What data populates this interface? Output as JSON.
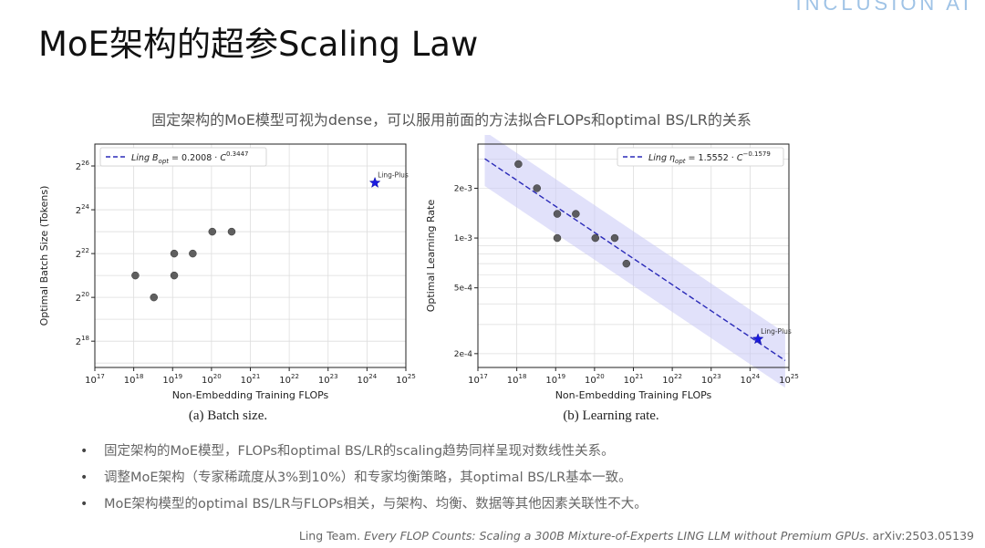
{
  "brand": "INCLUSION AI",
  "slide": {
    "title": "MoE架构的超参Scaling Law",
    "subtitle": "固定架构的MoE模型可视为dense，可以服用前面的方法拟合FLOPs和optimal BS/LR的关系"
  },
  "captions": [
    "(a) Batch size.",
    "(b) Learning rate."
  ],
  "chart_data": [
    {
      "type": "scatter",
      "xscale": "log",
      "yscale": "log2",
      "xlabel": "Non-Embedding Training FLOPs",
      "ylabel": "Optimal Batch Size (Tokens)",
      "xlim": [
        1e+17,
        1e+25
      ],
      "ylim_log2": [
        16.8,
        27.0
      ],
      "x_ticks": [
        {
          "base": "10",
          "exp": "17"
        },
        {
          "base": "10",
          "exp": "18"
        },
        {
          "base": "10",
          "exp": "19"
        },
        {
          "base": "10",
          "exp": "20"
        },
        {
          "base": "10",
          "exp": "21"
        },
        {
          "base": "10",
          "exp": "22"
        },
        {
          "base": "10",
          "exp": "23"
        },
        {
          "base": "10",
          "exp": "24"
        },
        {
          "base": "10",
          "exp": "25"
        }
      ],
      "y_ticks": [
        {
          "base": "2",
          "exp": "18"
        },
        {
          "base": "2",
          "exp": "20"
        },
        {
          "base": "2",
          "exp": "22"
        },
        {
          "base": "2",
          "exp": "24"
        },
        {
          "base": "2",
          "exp": "26"
        }
      ],
      "points": [
        {
          "x": 1.1e+18,
          "y": 2.0
        },
        {
          "x": 3.3e+18,
          "y": 1.0
        },
        {
          "x": 1.1e+19,
          "y": 4.0
        },
        {
          "x": 1.1e+19,
          "y": 2.0
        },
        {
          "x": 3.3e+19,
          "y": 4.0
        },
        {
          "x": 1.05e+20,
          "y": 8.0
        },
        {
          "x": 3.3e+20,
          "y": 8.0
        }
      ],
      "points_unit": "millions of tokens (2^20 = 1.0)",
      "fit": {
        "coef": 0.2008,
        "exp": 0.3447,
        "y_unit": "millions of tokens"
      },
      "band_log2_halfwidth": 0.8,
      "legend": {
        "prefix": "Ling ",
        "var": "B",
        "sub": "opt",
        "eq": " = 0.2008 · ",
        "c": "C",
        "sup": "0.3447",
        "position": "top-left"
      },
      "star": {
        "label": "Ling-Plus",
        "x": 1.6e+24,
        "y": 37.5
      },
      "grid": true
    },
    {
      "type": "scatter",
      "xscale": "log",
      "yscale": "log",
      "xlabel": "Non-Embedding Training FLOPs",
      "ylabel": "Optimal Learning Rate",
      "xlim": [
        1e+17,
        1e+25
      ],
      "ylim": [
        0.000165,
        0.0037
      ],
      "x_ticks": [
        {
          "base": "10",
          "exp": "17"
        },
        {
          "base": "10",
          "exp": "18"
        },
        {
          "base": "10",
          "exp": "19"
        },
        {
          "base": "10",
          "exp": "20"
        },
        {
          "base": "10",
          "exp": "21"
        },
        {
          "base": "10",
          "exp": "22"
        },
        {
          "base": "10",
          "exp": "23"
        },
        {
          "base": "10",
          "exp": "24"
        },
        {
          "base": "10",
          "exp": "25"
        }
      ],
      "y_ticks": [
        {
          "label": "2e-3",
          "value": 0.002
        },
        {
          "label": "1e-3",
          "value": 0.001
        },
        {
          "label": "5e-4",
          "value": 0.0005
        },
        {
          "label": "2e-4",
          "value": 0.0002
        }
      ],
      "points": [
        {
          "x": 1.1e+18,
          "y": 0.0028
        },
        {
          "x": 3.3e+18,
          "y": 0.002
        },
        {
          "x": 1.1e+19,
          "y": 0.0014
        },
        {
          "x": 1.1e+19,
          "y": 0.001
        },
        {
          "x": 3.3e+19,
          "y": 0.0014
        },
        {
          "x": 1.05e+20,
          "y": 0.001
        },
        {
          "x": 3.3e+20,
          "y": 0.001
        },
        {
          "x": 6.6e+20,
          "y": 0.0007
        }
      ],
      "fit": {
        "coef": 1.5552,
        "exp": -0.1579
      },
      "band_log10_halfwidth": 0.165,
      "legend": {
        "prefix": "Ling ",
        "var": "η",
        "sub": "opt",
        "eq": " = 1.5552 · ",
        "c": "C",
        "sup": "−0.1579",
        "position": "top-right"
      },
      "star": {
        "label": "Ling-Plus",
        "x": 1.6e+24,
        "y": 0.000245
      },
      "grid": true
    }
  ],
  "bullets": [
    "固定架构的MoE模型，FLOPs和optimal BS/LR的scaling趋势同样呈现对数线性关系。",
    "调整MoE架构（专家稀疏度从3%到10%）和专家均衡策略，其optimal BS/LR基本一致。",
    "MoE架构模型的optimal BS/LR与FLOPs相关，与架构、均衡、数据等其他因素关联性不大。"
  ],
  "citation": {
    "authors": "Ling Team. ",
    "title": "Every FLOP Counts: Scaling a 300B Mixture-of-Experts LING LLM without Premium GPUs",
    "tail": ". arXiv:2503.05139"
  }
}
